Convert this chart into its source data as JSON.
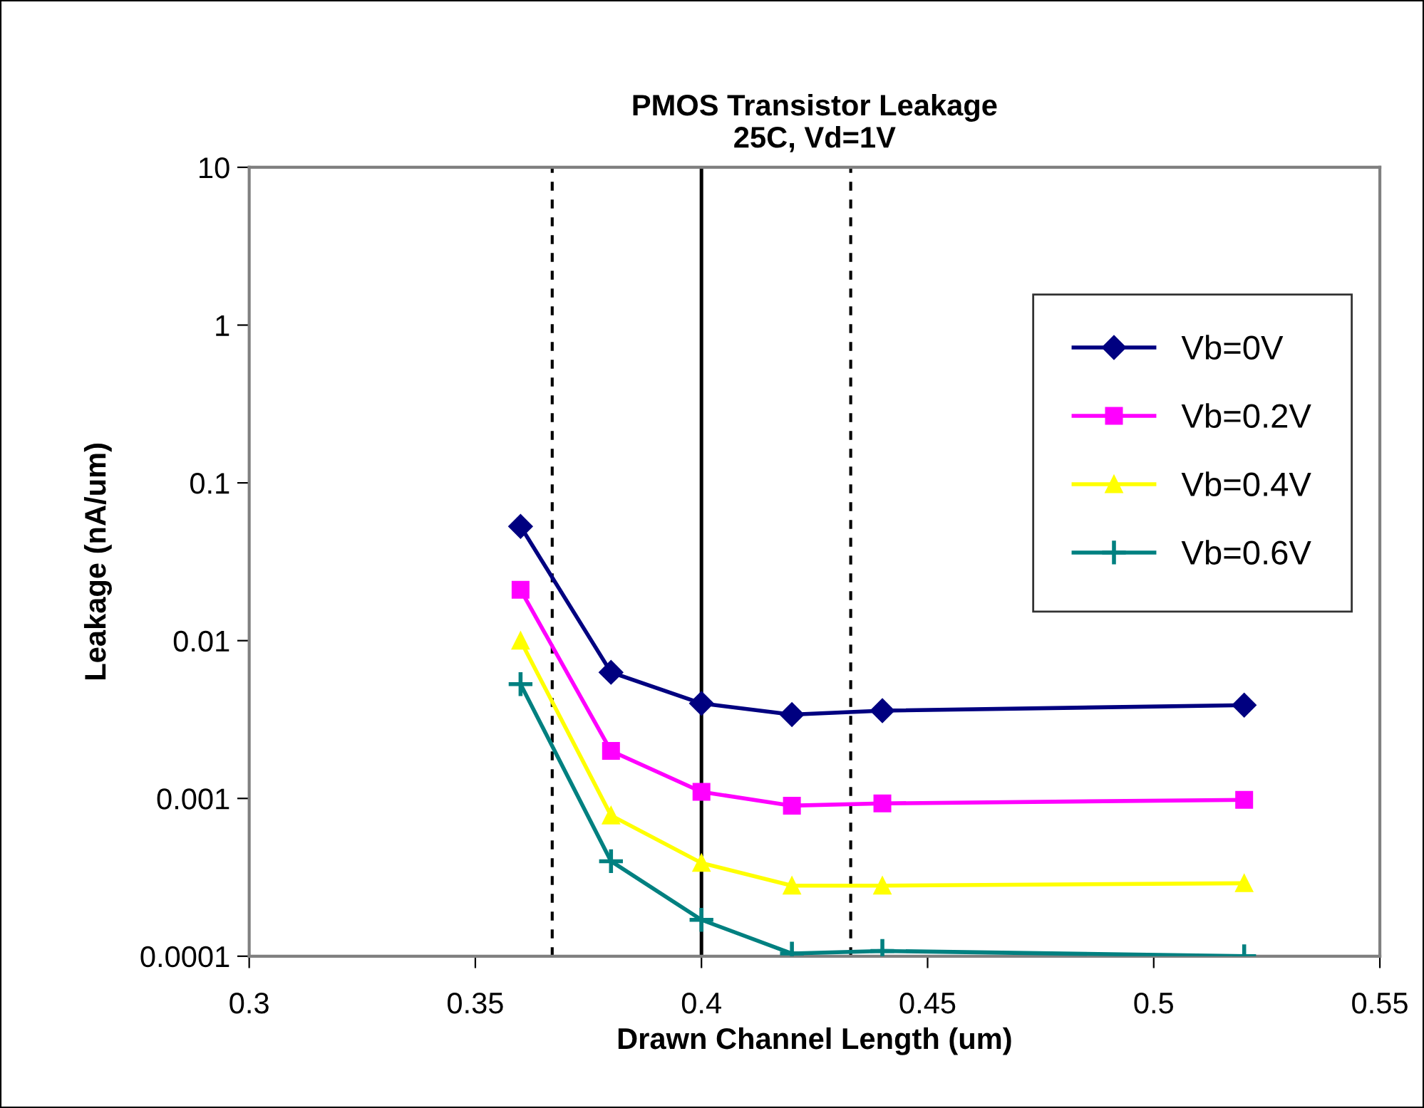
{
  "chart_data": {
    "type": "line",
    "title": "PMOS Transistor Leakage\n25C, Vd=1V",
    "xlabel": "Drawn Channel Length (um)",
    "ylabel": "Leakage (nA/um)",
    "x": [
      0.36,
      0.38,
      0.4,
      0.42,
      0.44,
      0.52
    ],
    "series": [
      {
        "name": "Vb=0V",
        "color": "#000080",
        "marker": "diamond",
        "values": [
          0.053,
          0.0063,
          0.004,
          0.0034,
          0.0036,
          0.0039
        ]
      },
      {
        "name": "Vb=0.2V",
        "color": "#ff00ff",
        "marker": "square",
        "values": [
          0.021,
          0.002,
          0.0011,
          0.0009,
          0.00093,
          0.00098
        ]
      },
      {
        "name": "Vb=0.4V",
        "color": "#ffff00",
        "marker": "triangle",
        "values": [
          0.01,
          0.00078,
          0.00039,
          0.00028,
          0.00028,
          0.00029
        ]
      },
      {
        "name": "Vb=0.6V",
        "color": "#008080",
        "marker": "cross",
        "values": [
          0.0053,
          0.0004,
          0.00017,
          0.000104,
          0.000108,
          0.0001
        ]
      }
    ],
    "log": "y",
    "xlim": [
      0.3,
      0.55
    ],
    "xticks": [
      0.3,
      0.35,
      0.4,
      0.45,
      0.5,
      0.55
    ],
    "ylim": [
      0.0001,
      10
    ],
    "yticks": [
      0.0001,
      0.001,
      0.01,
      0.1,
      1,
      10
    ],
    "ref_lines": [
      {
        "axis": "x",
        "value": 0.367,
        "line_style": "dashed",
        "color": "#000000"
      },
      {
        "axis": "x",
        "value": 0.4,
        "line_style": "solid",
        "color": "#000000"
      },
      {
        "axis": "x",
        "value": 0.433,
        "line_style": "dashed",
        "color": "#000000"
      }
    ],
    "grid": false,
    "legend": "right"
  }
}
